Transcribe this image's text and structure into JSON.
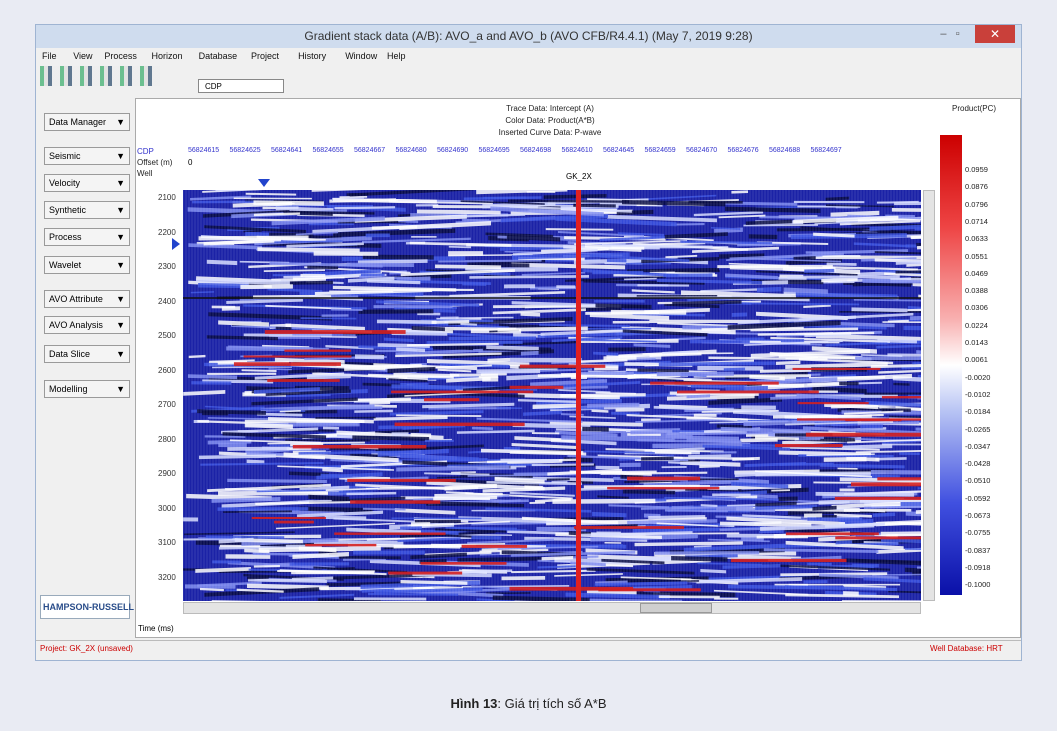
{
  "window": {
    "title": "Gradient stack data (A/B): AVO_a and AVO_b (AVO CFB/R4.4.1) (May 7, 2019 9:28)",
    "menu": [
      "File",
      "View",
      "Process",
      "Horizon",
      "Database",
      "Project",
      "History",
      "Window",
      "Help"
    ],
    "toolbar": {
      "dropdown": "CDP"
    },
    "sidebar": [
      "Data Manager",
      "Seismic",
      "Velocity",
      "Synthetic",
      "Process",
      "Wavelet",
      "AVO Attribute",
      "AVO Analysis",
      "Data Slice",
      "Modelling"
    ],
    "logo": "HAMPSON-RUSSELL",
    "plot": {
      "header": [
        "Trace Data: Intercept (A)",
        "Color Data: Product(A*B)",
        "Inserted Curve Data: P-wave"
      ],
      "row_labels": [
        "CDP",
        "Offset (m)",
        "Well"
      ],
      "offset": "0",
      "well": "GK_2X",
      "cdps": [
        "56824615",
        "56824625",
        "56824641",
        "56824655",
        "56824667",
        "56824680",
        "56824690",
        "56824695",
        "56824698",
        "56824610",
        "56824645",
        "56824659",
        "56824670",
        "56824676",
        "56824688",
        "56824697"
      ],
      "times": [
        "2100",
        "2200",
        "2300",
        "2400",
        "2500",
        "2600",
        "2700",
        "2800",
        "2900",
        "3000",
        "3100",
        "3200"
      ],
      "time_label": "Time (ms)",
      "colorbar": {
        "title": "Product(PC)",
        "labels": [
          "0.0959",
          "0.0876",
          "0.0796",
          "0.0714",
          "0.0633",
          "0.0551",
          "0.0469",
          "0.0388",
          "0.0306",
          "0.0224",
          "0.0143",
          "0.0061",
          "-0.0020",
          "-0.0102",
          "-0.0184",
          "-0.0265",
          "-0.0347",
          "-0.0428",
          "-0.0510",
          "-0.0592",
          "-0.0673",
          "-0.0755",
          "-0.0837",
          "-0.0918",
          "-0.1000"
        ]
      }
    },
    "status": {
      "left": "Project: GK_2X (unsaved)",
      "right": "Well Database: HRT"
    }
  },
  "caption": {
    "label": "Hình 13",
    "text": ": Giá trị tích số A*B"
  }
}
